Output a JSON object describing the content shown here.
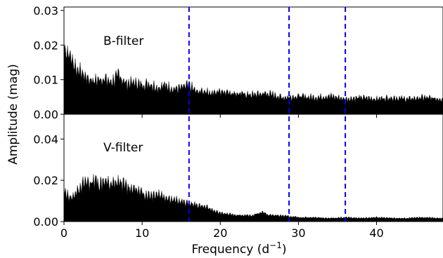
{
  "chart_data": {
    "type": "area",
    "xlabel": "Frequency (d",
    "xlabel_sup": "−1",
    "xlabel_end": ")",
    "ylabel": "Amplitude (mag)",
    "xlim": [
      0,
      48.5
    ],
    "xticks": [
      "0",
      "10",
      "20",
      "30",
      "40"
    ],
    "xtick_values": [
      0,
      10,
      20,
      30,
      40
    ],
    "marker_frequencies": [
      16.0,
      28.8,
      36.0
    ],
    "marker_color": "#0000ee",
    "panels": [
      {
        "name": "B-filter",
        "ylim": [
          0,
          0.031
        ],
        "yticks": [
          "0.00",
          "0.01",
          "0.02",
          "0.03"
        ],
        "ytick_values": [
          0,
          0.01,
          0.02,
          0.03
        ],
        "envelope": {
          "x": [
            0,
            0.3,
            0.8,
            1.5,
            2.2,
            3,
            4,
            5,
            6,
            7,
            8,
            9,
            10,
            11,
            12,
            13,
            14,
            15,
            16,
            17,
            18,
            19,
            20,
            22,
            24,
            26,
            28,
            30,
            32,
            34,
            36,
            38,
            40,
            42,
            44,
            46,
            48.5
          ],
          "y": [
            0.024,
            0.023,
            0.021,
            0.017,
            0.015,
            0.013,
            0.012,
            0.013,
            0.0115,
            0.014,
            0.011,
            0.0115,
            0.0105,
            0.011,
            0.0095,
            0.0105,
            0.009,
            0.0095,
            0.0105,
            0.008,
            0.0085,
            0.0075,
            0.0085,
            0.0075,
            0.007,
            0.0075,
            0.006,
            0.0065,
            0.006,
            0.0065,
            0.0055,
            0.006,
            0.0055,
            0.006,
            0.0055,
            0.006,
            0.0055
          ]
        }
      },
      {
        "name": "V-filter",
        "ylim": [
          0,
          0.052
        ],
        "yticks": [
          "0.00",
          "0.02",
          "0.04"
        ],
        "ytick_values": [
          0,
          0.02,
          0.04
        ],
        "envelope": {
          "x": [
            0,
            0.5,
            1,
            2,
            3,
            3.5,
            4,
            4.5,
            5,
            6,
            7,
            8,
            9,
            10,
            11,
            12,
            13,
            14,
            15,
            16,
            17,
            18,
            19,
            20,
            22,
            24,
            25.5,
            26,
            28,
            29,
            30,
            32,
            34,
            36,
            38,
            40,
            42,
            44,
            46,
            48.5
          ],
          "y": [
            0.017,
            0.016,
            0.014,
            0.021,
            0.024,
            0.023,
            0.026,
            0.022,
            0.025,
            0.022,
            0.024,
            0.021,
            0.02,
            0.017,
            0.016,
            0.017,
            0.015,
            0.013,
            0.012,
            0.011,
            0.01,
            0.009,
            0.007,
            0.005,
            0.004,
            0.0035,
            0.006,
            0.004,
            0.0035,
            0.003,
            0.0025,
            0.0025,
            0.002,
            0.0025,
            0.002,
            0.0025,
            0.002,
            0.002,
            0.0025,
            0.002
          ]
        }
      }
    ]
  }
}
